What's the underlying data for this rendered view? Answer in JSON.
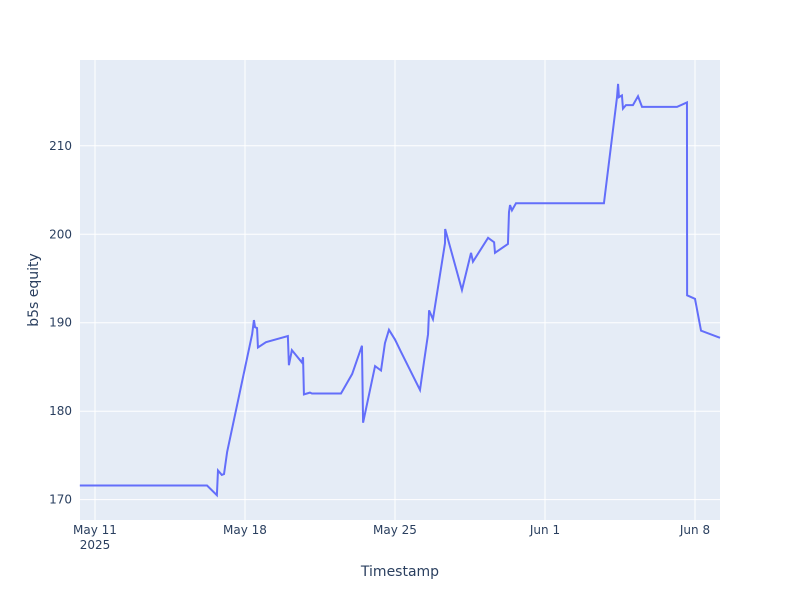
{
  "chart_data": {
    "type": "line",
    "x_title": "Timestamp",
    "y_title": "b5s equity",
    "color": "#636efa",
    "plot_background": "#e5ecf6",
    "grid": true,
    "x": [
      "2025-05-10T07:00",
      "2025-05-16T05:30",
      "2025-05-16T16:30",
      "2025-05-16T17:45",
      "2025-05-16T22:00",
      "2025-05-17T00:30",
      "2025-05-17T04:00",
      "2025-05-18T08:00",
      "2025-05-18T10:00",
      "2025-05-18T11:15",
      "2025-05-18T13:30",
      "2025-05-18T14:30",
      "2025-05-18T23:30",
      "2025-05-20T00:00",
      "2025-05-20T01:10",
      "2025-05-20T04:30",
      "2025-05-20T15:50",
      "2025-05-20T17:00",
      "2025-05-20T18:00",
      "2025-05-21T00:45",
      "2025-05-21T03:00",
      "2025-05-22T11:30",
      "2025-05-23T00:00",
      "2025-05-23T11:00",
      "2025-05-23T12:15",
      "2025-05-24T01:40",
      "2025-05-24T08:20",
      "2025-05-24T12:45",
      "2025-05-24T17:15",
      "2025-05-25T00:00",
      "2025-05-25T06:45",
      "2025-05-26T04:00",
      "2025-05-26T08:30",
      "2025-05-26T13:00",
      "2025-05-26T14:10",
      "2025-05-26T18:30",
      "2025-05-27T08:00",
      "2025-05-27T08:10",
      "2025-05-28T03:00",
      "2025-05-28T13:10",
      "2025-05-28T15:20",
      "2025-05-29T08:15",
      "2025-05-29T15:00",
      "2025-05-29T16:00",
      "2025-05-30T06:30",
      "2025-05-30T07:40",
      "2025-05-30T08:50",
      "2025-05-30T11:00",
      "2025-05-30T15:30",
      "2025-06-03T18:00",
      "2025-06-04T08:40",
      "2025-06-04T09:50",
      "2025-06-04T10:50",
      "2025-06-04T14:10",
      "2025-06-04T15:20",
      "2025-06-04T18:40",
      "2025-06-05T02:30",
      "2025-06-05T08:10",
      "2025-06-05T12:40",
      "2025-06-07T03:50",
      "2025-06-07T15:00",
      "2025-06-07T15:10",
      "2025-06-08T00:00",
      "2025-06-08T06:45",
      "2025-06-09T04:00"
    ],
    "values": [
      171.6,
      171.6,
      170.5,
      173.3,
      172.8,
      172.9,
      175.4,
      188.7,
      190.3,
      189.5,
      189.4,
      187.2,
      187.8,
      188.5,
      185.2,
      186.9,
      185.5,
      186.1,
      181.9,
      182.1,
      182.0,
      182.0,
      184.2,
      187.4,
      178.7,
      185.1,
      184.6,
      187.7,
      189.2,
      188.1,
      186.7,
      182.4,
      185.6,
      188.7,
      191.4,
      190.4,
      199.0,
      200.6,
      193.7,
      197.9,
      196.9,
      199.6,
      199.1,
      197.9,
      198.9,
      202.5,
      203.3,
      202.7,
      203.5,
      203.5,
      215.5,
      217.0,
      215.5,
      215.7,
      214.2,
      214.6,
      214.6,
      215.6,
      214.4,
      214.4,
      214.9,
      193.1,
      192.7,
      189.1,
      188.3
    ],
    "xlim": [
      "2025-05-10T07:12",
      "2025-06-09T04:00"
    ],
    "xticks": [
      {
        "value": "2025-05-11T00:00",
        "label": [
          "May 11",
          "2025"
        ]
      },
      {
        "value": "2025-05-18T00:00",
        "label": "May 18"
      },
      {
        "value": "2025-05-25T00:00",
        "label": "May 25"
      },
      {
        "value": "2025-06-01T00:00",
        "label": "Jun 1"
      },
      {
        "value": "2025-06-08T00:00",
        "label": "Jun 8"
      }
    ],
    "ylim": [
      167.7,
      219.7
    ],
    "yticks": [
      170,
      180,
      190,
      200,
      210
    ]
  }
}
